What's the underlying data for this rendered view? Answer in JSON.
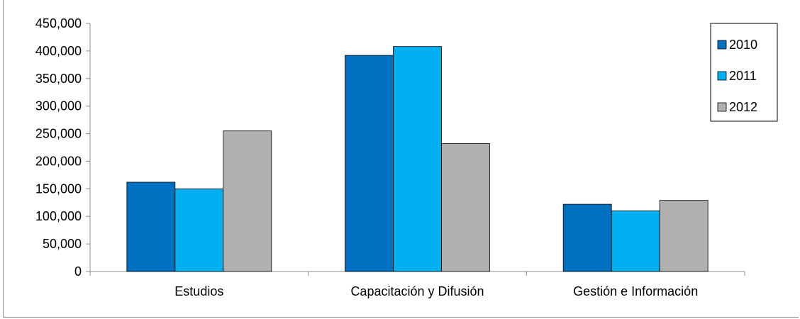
{
  "chart_data": {
    "type": "bar",
    "title": "",
    "xlabel": "",
    "ylabel": "",
    "categories": [
      "Estudios",
      "Capacitación y Difusión",
      "Gestión e Información"
    ],
    "series": [
      {
        "name": "2010",
        "color": "#0070c0",
        "values": [
          162000,
          392000,
          122000
        ]
      },
      {
        "name": "2011",
        "color": "#00b0f0",
        "values": [
          150000,
          408000,
          110000
        ]
      },
      {
        "name": "2012",
        "color": "#b0b0b0",
        "values": [
          255000,
          232000,
          129000
        ]
      }
    ],
    "ylim": [
      0,
      450000
    ],
    "ytick_step": 50000,
    "ytick_labels": [
      "0",
      "50,000",
      "100,000",
      "150,000",
      "200,000",
      "250,000",
      "300,000",
      "350,000",
      "400,000",
      "450,000"
    ],
    "grid": false,
    "legend_position": "top-right"
  }
}
